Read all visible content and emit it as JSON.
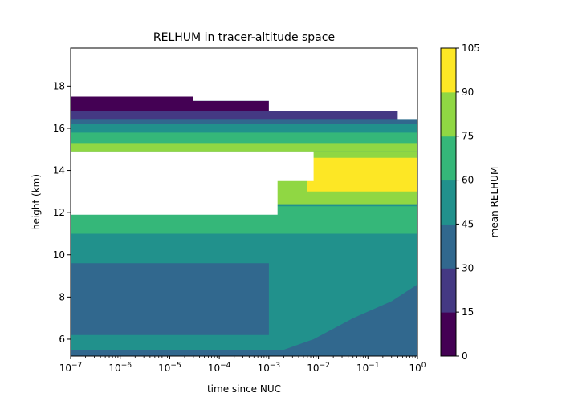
{
  "chart_data": {
    "type": "contourf",
    "title": "RELHUM in tracer-altitude space",
    "xlabel": "time since NUC",
    "ylabel": "height (km)",
    "x_scale": "log",
    "xlim": [
      1e-07,
      1
    ],
    "ylim": [
      5.2,
      19.8
    ],
    "x_ticks": [
      {
        "value": 1e-07,
        "base": "10",
        "exp": "−7"
      },
      {
        "value": 1e-06,
        "base": "10",
        "exp": "−6"
      },
      {
        "value": 1e-05,
        "base": "10",
        "exp": "−5"
      },
      {
        "value": 0.0001,
        "base": "10",
        "exp": "−4"
      },
      {
        "value": 0.001,
        "base": "10",
        "exp": "−3"
      },
      {
        "value": 0.01,
        "base": "10",
        "exp": "−2"
      },
      {
        "value": 0.1,
        "base": "10",
        "exp": "−1"
      },
      {
        "value": 1,
        "base": "10",
        "exp": "0"
      }
    ],
    "y_ticks": [
      6,
      8,
      10,
      12,
      14,
      16,
      18
    ],
    "colorbar": {
      "label": "mean RELHUM",
      "levels": [
        0,
        15,
        30,
        45,
        60,
        75,
        90,
        105
      ],
      "colors": [
        "#440154",
        "#443983",
        "#31688e",
        "#21918c",
        "#35b779",
        "#90d743",
        "#fde725"
      ]
    },
    "regions": [
      {
        "level": 30,
        "outline": [
          [
            1e-07,
            5.2
          ],
          [
            1,
            5.2
          ],
          [
            1,
            8.6
          ],
          [
            0.3,
            7.8
          ],
          [
            0.05,
            7.0
          ],
          [
            0.008,
            6.0
          ],
          [
            0.002,
            5.5
          ],
          [
            1e-07,
            5.5
          ]
        ]
      },
      {
        "level": 60,
        "outline": [
          [
            1e-07,
            11.0
          ],
          [
            1,
            11.0
          ],
          [
            1,
            12.3
          ],
          [
            1e-07,
            12.3
          ]
        ]
      },
      {
        "level": 60,
        "outline": [
          [
            1e-07,
            15.1
          ],
          [
            1,
            15.1
          ],
          [
            1,
            15.8
          ],
          [
            1e-07,
            15.8
          ]
        ]
      },
      {
        "level": 75,
        "outline": [
          [
            1e-07,
            14.9
          ],
          [
            1,
            14.9
          ],
          [
            1,
            15.3
          ],
          [
            1e-07,
            15.3
          ]
        ]
      },
      {
        "level": 75,
        "outline": [
          [
            0.0009,
            12.4
          ],
          [
            1,
            12.4
          ],
          [
            1,
            14.9
          ],
          [
            0.0009,
            14.9
          ]
        ]
      },
      {
        "level": 90,
        "outline": [
          [
            0.006,
            13.0
          ],
          [
            1,
            13.0
          ],
          [
            1,
            14.6
          ],
          [
            0.006,
            14.6
          ]
        ]
      },
      {
        "level": 45,
        "outline": [
          [
            1e-07,
            15.8
          ],
          [
            1,
            15.8
          ],
          [
            1,
            16.2
          ],
          [
            1e-07,
            16.2
          ]
        ]
      },
      {
        "level": 30,
        "outline": [
          [
            1e-07,
            16.2
          ],
          [
            1,
            16.2
          ],
          [
            1,
            16.4
          ],
          [
            1e-07,
            16.4
          ]
        ]
      },
      {
        "level": 15,
        "outline": [
          [
            1e-07,
            16.4
          ],
          [
            0.4,
            16.4
          ],
          [
            0.4,
            16.8
          ],
          [
            1e-07,
            16.8
          ]
        ]
      },
      {
        "level": 0,
        "outline": [
          [
            1e-07,
            16.8
          ],
          [
            0.001,
            16.8
          ],
          [
            0.001,
            17.3
          ],
          [
            3e-05,
            17.3
          ],
          [
            3e-05,
            17.5
          ],
          [
            1e-07,
            17.5
          ]
        ]
      },
      {
        "level": 30,
        "outline": [
          [
            1e-07,
            6.2
          ],
          [
            0.001,
            6.2
          ],
          [
            0.001,
            9.6
          ],
          [
            1e-07,
            9.6
          ]
        ]
      }
    ],
    "nodata": [
      {
        "outline": [
          [
            1e-07,
            11.9
          ],
          [
            0.0015,
            11.9
          ],
          [
            0.0015,
            13.5
          ],
          [
            0.008,
            13.5
          ],
          [
            0.008,
            14.9
          ],
          [
            1e-07,
            14.9
          ]
        ]
      },
      {
        "outline": [
          [
            1e-07,
            17.5
          ],
          [
            3e-05,
            17.5
          ],
          [
            3e-05,
            17.3
          ],
          [
            0.001,
            17.3
          ],
          [
            0.001,
            16.8
          ],
          [
            1,
            16.8
          ],
          [
            1,
            19.8
          ],
          [
            1e-07,
            19.8
          ]
        ]
      },
      {
        "outline": [
          [
            0.4,
            16.4
          ],
          [
            1,
            16.4
          ],
          [
            1,
            16.8
          ],
          [
            0.4,
            16.8
          ]
        ]
      }
    ]
  }
}
